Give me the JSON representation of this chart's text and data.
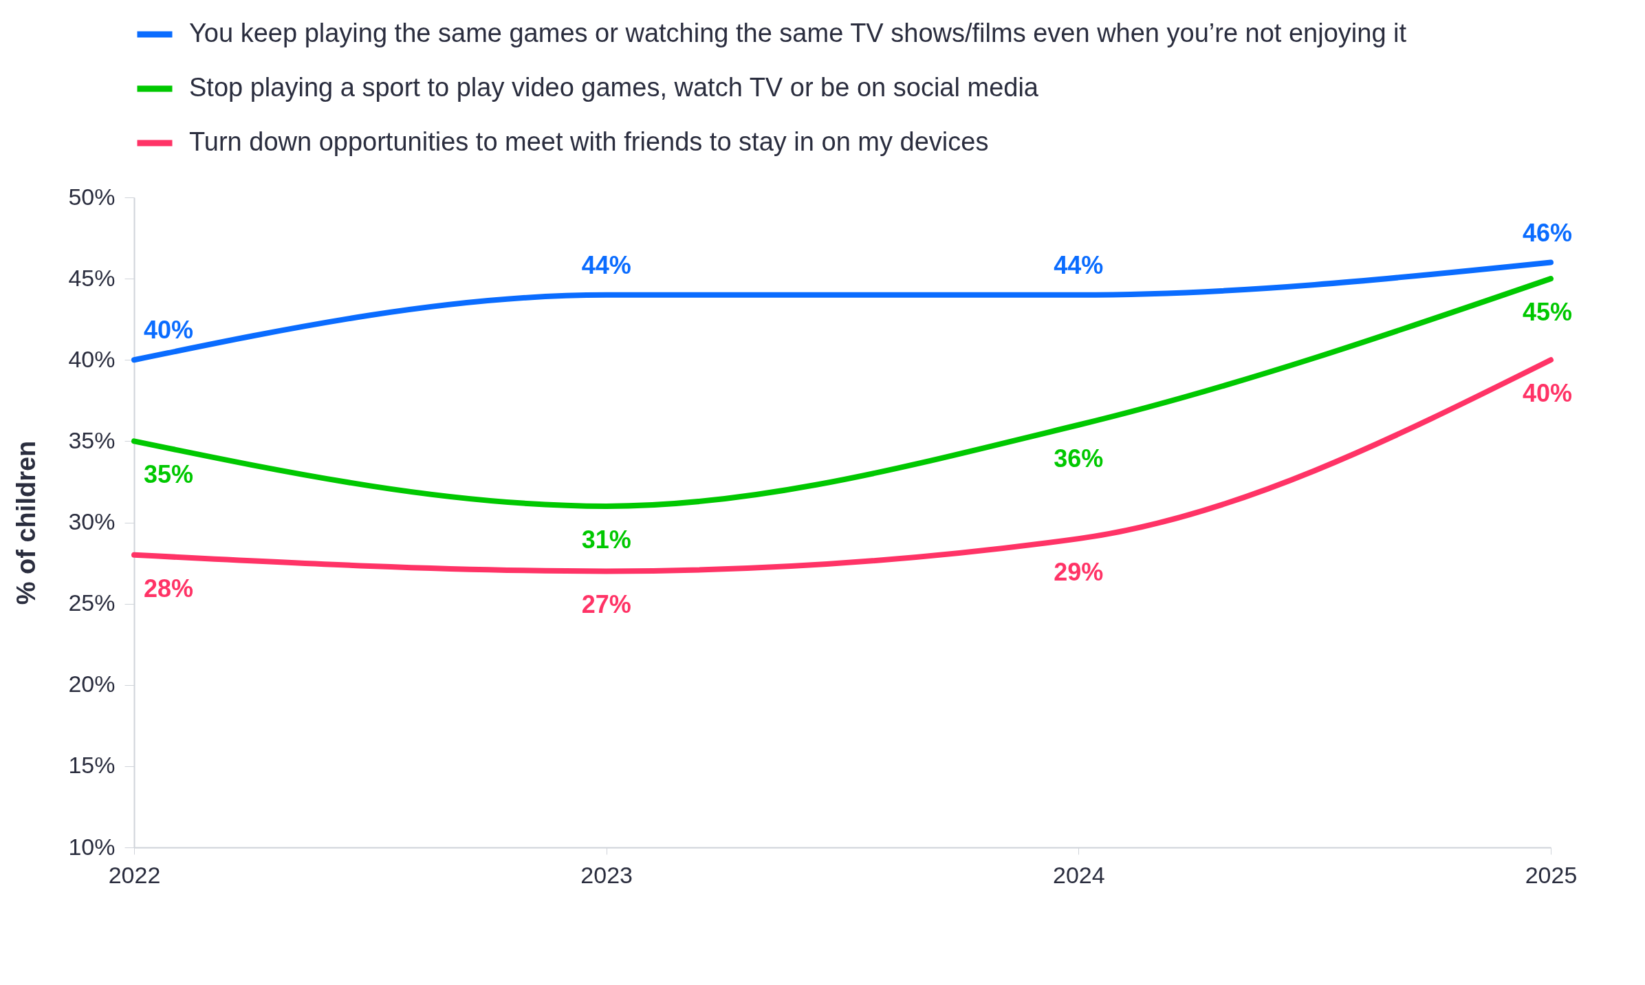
{
  "chart_data": {
    "type": "line",
    "ylabel": "% of children",
    "categories": [
      "2022",
      "2023",
      "2024",
      "2025"
    ],
    "series": [
      {
        "name": "You keep playing the same games or watching the same TV shows/films even when you’re not enjoying it",
        "color": "#0a6cff",
        "values": [
          40,
          44,
          44,
          46
        ],
        "value_labels": [
          "40%",
          "44%",
          "44%",
          "46%"
        ]
      },
      {
        "name": "Stop playing a sport to play video games, watch TV or be on social media",
        "color": "#00c800",
        "values": [
          35,
          31,
          36,
          45
        ],
        "value_labels": [
          "35%",
          "31%",
          "36%",
          "45%"
        ]
      },
      {
        "name": "Turn down opportunities to meet with friends to stay in on my devices",
        "color": "#ff3366",
        "values": [
          28,
          27,
          29,
          40
        ],
        "value_labels": [
          "28%",
          "27%",
          "29%",
          "40%"
        ]
      }
    ],
    "ylim": [
      10,
      50
    ],
    "yticks": [
      {
        "value": 10,
        "label": "10%"
      },
      {
        "value": 15,
        "label": "15%"
      },
      {
        "value": 20,
        "label": "20%"
      },
      {
        "value": 25,
        "label": "25%"
      },
      {
        "value": 30,
        "label": "30%"
      },
      {
        "value": 35,
        "label": "35%"
      },
      {
        "value": 40,
        "label": "40%"
      },
      {
        "value": 45,
        "label": "45%"
      },
      {
        "value": 50,
        "label": "50%"
      }
    ],
    "legend": "top",
    "grid": false,
    "marker": "none",
    "line_style": "solid"
  }
}
